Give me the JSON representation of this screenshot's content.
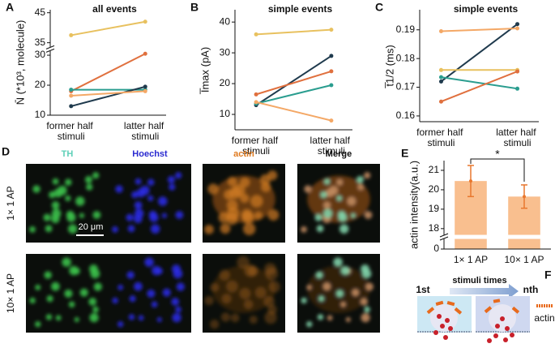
{
  "chart_data": [
    {
      "type": "line",
      "label": "A",
      "title": "all events",
      "ylabel": "N̄ (*10³, molecule)",
      "categories": [
        "former half stimuli",
        "latter half stimuli"
      ],
      "ylim": [
        10,
        46
      ],
      "ybreak": [
        31,
        34
      ],
      "yticks": [
        10,
        20,
        30,
        35,
        45
      ],
      "series": [
        {
          "color": "#e8c15f",
          "values": [
            37.5,
            42
          ]
        },
        {
          "color": "#e0703e",
          "values": [
            18,
            30.5
          ]
        },
        {
          "color": "#2a9d8f",
          "values": [
            18.5,
            18.5
          ]
        },
        {
          "color": "#1f3a4d",
          "values": [
            13,
            19.5
          ]
        },
        {
          "color": "#f4a866",
          "values": [
            16.5,
            18
          ]
        }
      ]
    },
    {
      "type": "line",
      "label": "B",
      "title": "simple events",
      "ylabel": "I̅max (pA)",
      "categories": [
        "former half stimuli",
        "latter half stimuli"
      ],
      "ylim": [
        5,
        44
      ],
      "yticks": [
        10,
        20,
        30,
        40
      ],
      "series": [
        {
          "color": "#e8c15f",
          "values": [
            36,
            37.5
          ]
        },
        {
          "color": "#1f3a4d",
          "values": [
            13,
            29
          ]
        },
        {
          "color": "#e0703e",
          "values": [
            16.5,
            24
          ]
        },
        {
          "color": "#2a9d8f",
          "values": [
            13.5,
            19.5
          ]
        },
        {
          "color": "#f4a866",
          "values": [
            14,
            8
          ]
        }
      ]
    },
    {
      "type": "line",
      "label": "C",
      "title": "simple events",
      "ylabel": "t̅1/2 (ms)",
      "categories": [
        "former half stimuli",
        "latter half stimuli"
      ],
      "ylim": [
        0.158,
        0.197
      ],
      "yticks": [
        0.16,
        0.17,
        0.18,
        0.19
      ],
      "series": [
        {
          "color": "#1f3a4d",
          "values": [
            0.172,
            0.192
          ]
        },
        {
          "color": "#f4a866",
          "values": [
            0.1895,
            0.1905
          ]
        },
        {
          "color": "#e8c15f",
          "values": [
            0.176,
            0.176
          ]
        },
        {
          "color": "#2a9d8f",
          "values": [
            0.1735,
            0.1695
          ]
        },
        {
          "color": "#e0703e",
          "values": [
            0.165,
            0.1755
          ]
        }
      ]
    },
    {
      "type": "bar",
      "label": "E",
      "ylabel": "actin intensity(a.u.)",
      "categories": [
        "1× 1 AP",
        "10× 1 AP"
      ],
      "values": [
        20.45,
        19.65
      ],
      "errors": [
        0.8,
        0.6
      ],
      "color": "#f9bf8f",
      "error_color": "#e8772e",
      "ylim": [
        0,
        21.5
      ],
      "ybreak": [
        0.5,
        17.7
      ],
      "yticks": [
        0,
        18,
        19,
        20,
        21
      ],
      "annotation": "*"
    }
  ],
  "images": {
    "label": "D",
    "channels": [
      "TH",
      "Hoechst",
      "actin",
      "Merge"
    ],
    "channel_colors": [
      "#5fd0b8",
      "#2a2ad0",
      "#e07b20",
      "#111111"
    ],
    "rows": [
      "1× 1 AP",
      "10× 1 AP"
    ],
    "scale_bar": "20 μm"
  },
  "diagram": {
    "label": "F",
    "start": "1st",
    "process": "stimuli times",
    "end": "nth",
    "legend": "actin"
  }
}
